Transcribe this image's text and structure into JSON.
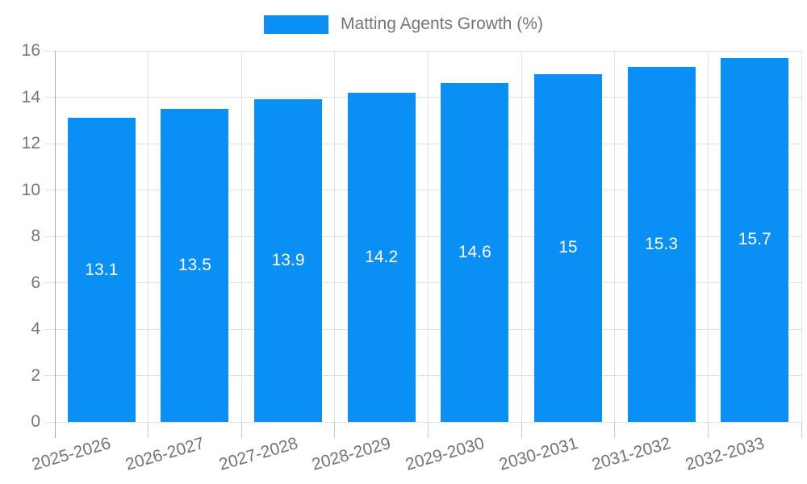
{
  "colors": {
    "bar": "#0A90F5",
    "text": "#757575",
    "grid": "#e2e2e2",
    "axis": "#a9a9a9",
    "x_tick": "#c9c9c9",
    "value_label": "#ffffff",
    "background": "#ffffff"
  },
  "legend": {
    "label": "Matting Agents Growth (%)"
  },
  "chart_data": {
    "type": "bar",
    "title": "Matting Agents Growth (%)",
    "categories": [
      "2025-2026",
      "2026-2027",
      "2027-2028",
      "2028-2029",
      "2029-2030",
      "2030-2031",
      "2031-2032",
      "2032-2033"
    ],
    "values": [
      13.1,
      13.5,
      13.9,
      14.2,
      14.6,
      15,
      15.3,
      15.7
    ],
    "value_labels": [
      "13.1",
      "13.5",
      "13.9",
      "14.2",
      "14.6",
      "15",
      "15.3",
      "15.7"
    ],
    "xlabel": "",
    "ylabel": "",
    "ylim": [
      0,
      16
    ],
    "ytick_step": 2,
    "ytick_labels": [
      "0",
      "2",
      "4",
      "6",
      "8",
      "10",
      "12",
      "14",
      "16"
    ],
    "grid": "horizontal-and-vertical",
    "legend_position": "top-center",
    "bar_label_position": "center-inside",
    "x_label_rotation_deg": -16
  }
}
